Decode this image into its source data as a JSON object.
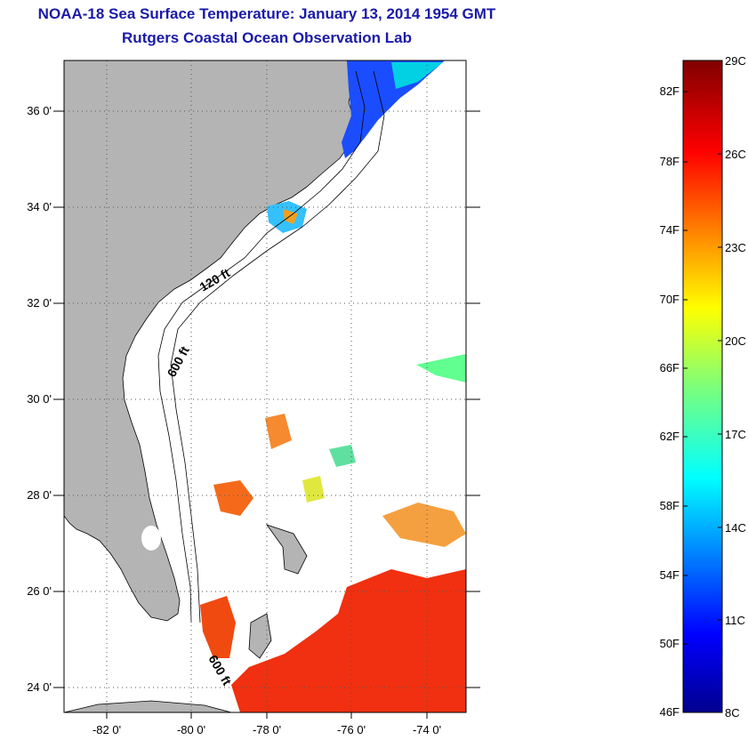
{
  "title": "NOAA-18 Sea Surface Temperature:  January 13, 2014 1954 GMT",
  "subtitle": "Rutgers Coastal Ocean Observation Lab",
  "map": {
    "lat_labels": [
      "36 0'",
      "34 0'",
      "32 0'",
      "30 0'",
      "28 0'",
      "26 0'",
      "24 0'"
    ],
    "lon_labels": [
      "-82 0'",
      "-80 0'",
      "-78 0'",
      "-76 0'",
      "-74 0'"
    ],
    "contour_labels": [
      "120 ft",
      "600 ft",
      "600 ft"
    ],
    "land_color": "#b4b4b4"
  },
  "colorbar": {
    "fahrenheit_labels": [
      "82F",
      "78F",
      "74F",
      "70F",
      "66F",
      "62F",
      "58F",
      "54F",
      "50F",
      "46F"
    ],
    "celsius_labels": [
      "29C",
      "26C",
      "23C",
      "20C",
      "17C",
      "14C",
      "11C",
      "8C"
    ]
  }
}
